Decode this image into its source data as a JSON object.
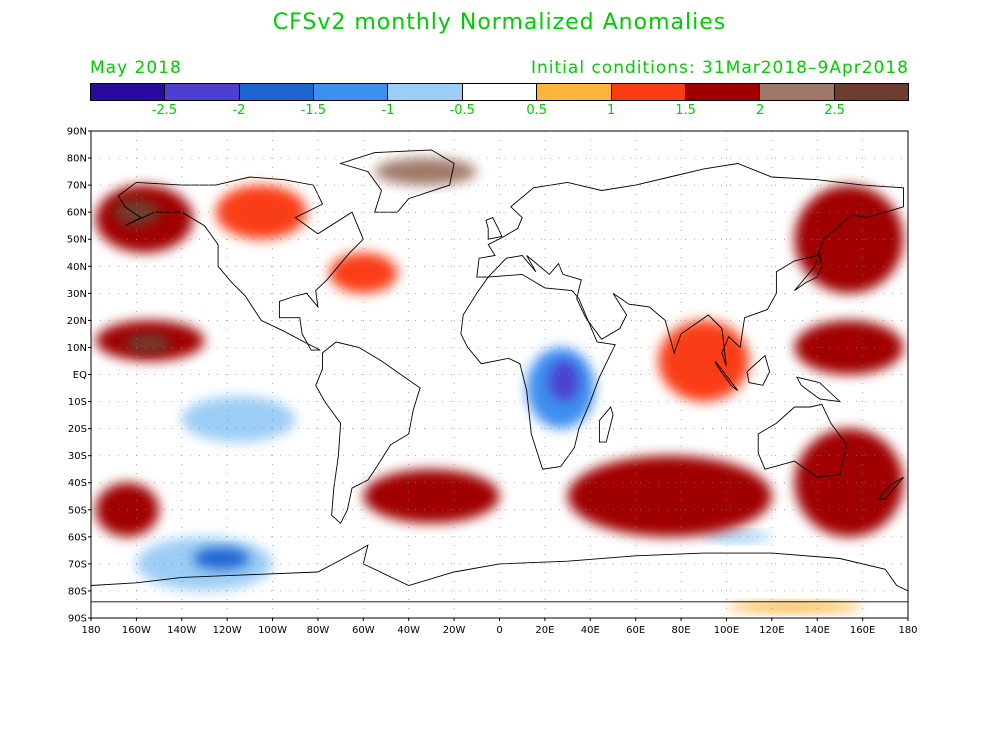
{
  "title": "CFSv2 monthly Normalized Anomalies",
  "subtitle_left": "May 2018",
  "subtitle_right": "Initial conditions: 31Mar2018–9Apr2018",
  "colorbar": {
    "colors": [
      "#2a0a9e",
      "#4d3fcf",
      "#1e64d0",
      "#3d8ff0",
      "#9ccdf5",
      "#ffffff",
      "#fcb43c",
      "#fa3c14",
      "#a00000",
      "#a07868",
      "#6e3c2e"
    ],
    "labels": [
      "-2.5",
      "-2",
      "-1.5",
      "-1",
      "-0.5",
      "0.5",
      "1",
      "1.5",
      "2",
      "2.5"
    ]
  },
  "axes": {
    "lat_labels": [
      "90N",
      "80N",
      "70N",
      "60N",
      "50N",
      "40N",
      "30N",
      "20N",
      "10N",
      "EQ",
      "10S",
      "20S",
      "30S",
      "40S",
      "50S",
      "60S",
      "70S",
      "80S",
      "90S"
    ],
    "lon_labels": [
      "180",
      "160W",
      "140W",
      "120W",
      "100W",
      "80W",
      "60W",
      "40W",
      "20W",
      "0",
      "20E",
      "40E",
      "60E",
      "80E",
      "100E",
      "120E",
      "140E",
      "160E",
      "180"
    ]
  },
  "map_data": {
    "type": "filled-contour-map",
    "lon_range": [
      -180,
      180
    ],
    "lat_range": [
      -90,
      90
    ],
    "variable": "Normalized Anomalies",
    "levels": [
      -2.5,
      -2,
      -1.5,
      -1,
      -0.5,
      0.5,
      1,
      1.5,
      2,
      2.5
    ],
    "anomaly_regions": [
      {
        "lon": [
          -178,
          -135
        ],
        "lat": [
          45,
          70
        ],
        "level": 1.5
      },
      {
        "lon": [
          -170,
          -150
        ],
        "lat": [
          55,
          65
        ],
        "level": 2.5
      },
      {
        "lon": [
          -125,
          -85
        ],
        "lat": [
          50,
          70
        ],
        "level": 1
      },
      {
        "lon": [
          -178,
          -130
        ],
        "lat": [
          5,
          20
        ],
        "level": 1.5
      },
      {
        "lon": [
          -165,
          -145
        ],
        "lat": [
          8,
          15
        ],
        "level": 2.5
      },
      {
        "lon": [
          -75,
          -45
        ],
        "lat": [
          30,
          45
        ],
        "level": 1
      },
      {
        "lon": [
          -55,
          -10
        ],
        "lat": [
          70,
          80
        ],
        "level": 2
      },
      {
        "lon": [
          -140,
          -90
        ],
        "lat": [
          -25,
          -8
        ],
        "level": -1
      },
      {
        "lon": [
          -50,
          -5
        ],
        "lat": [
          -25,
          12
        ],
        "level": -0.5
      },
      {
        "lon": [
          12,
          42
        ],
        "lat": [
          -20,
          10
        ],
        "level": -1.5
      },
      {
        "lon": [
          22,
          35
        ],
        "lat": [
          -10,
          5
        ],
        "level": -2.5
      },
      {
        "lon": [
          -178,
          -150
        ],
        "lat": [
          -60,
          -40
        ],
        "level": 1.5
      },
      {
        "lon": [
          -60,
          0
        ],
        "lat": [
          -55,
          -35
        ],
        "level": 1.5
      },
      {
        "lon": [
          30,
          120
        ],
        "lat": [
          -60,
          -30
        ],
        "level": 1.5
      },
      {
        "lon": [
          130,
          178
        ],
        "lat": [
          -60,
          -20
        ],
        "level": 1.5
      },
      {
        "lon": [
          130,
          178
        ],
        "lat": [
          30,
          70
        ],
        "level": 1.5
      },
      {
        "lon": [
          70,
          110
        ],
        "lat": [
          -10,
          20
        ],
        "level": 1
      },
      {
        "lon": [
          130,
          178
        ],
        "lat": [
          0,
          20
        ],
        "level": 1.5
      },
      {
        "lon": [
          -160,
          -100
        ],
        "lat": [
          -80,
          -60
        ],
        "level": -1
      },
      {
        "lon": [
          -135,
          -110
        ],
        "lat": [
          -72,
          -64
        ],
        "level": -2
      },
      {
        "lon": [
          90,
          120
        ],
        "lat": [
          -62,
          -58
        ],
        "level": -1
      },
      {
        "lon": [
          100,
          160
        ],
        "lat": [
          -88,
          -84
        ],
        "level": 0.5
      }
    ]
  }
}
